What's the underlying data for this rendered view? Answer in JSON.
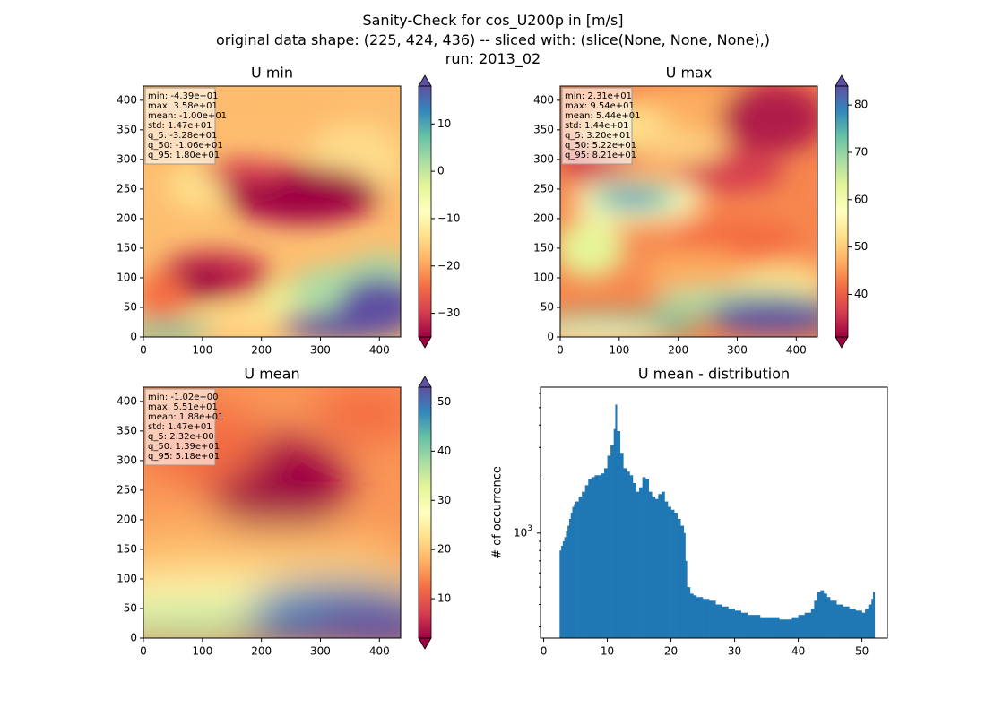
{
  "suptitle": {
    "line1": "Sanity-Check for cos_U200p in [m/s]",
    "line2": "original data shape: (225, 424, 436) -- sliced with: (slice(None, None, None),)",
    "line3": "run: 2013_02"
  },
  "chart_data": [
    {
      "type": "heatmap",
      "title": "U min",
      "xlim": [
        0,
        436
      ],
      "ylim": [
        0,
        424
      ],
      "xticks": [
        0,
        100,
        200,
        300,
        400
      ],
      "yticks": [
        0,
        50,
        100,
        150,
        200,
        250,
        300,
        350,
        400
      ],
      "colormap": "Spectral",
      "colorbar": {
        "range": [
          -35,
          18
        ],
        "ticks": [
          -30,
          -20,
          -10,
          0,
          10
        ],
        "extend": "both"
      },
      "stats": [
        "min: -4.39e+01",
        "max: 3.58e+01",
        "mean: -1.00e+01",
        "std: 1.47e+01",
        "q_5: -3.28e+01",
        "q_50: -1.06e+01",
        "q_95: 1.80e+01"
      ]
    },
    {
      "type": "heatmap",
      "title": "U max",
      "xlim": [
        0,
        436
      ],
      "ylim": [
        0,
        424
      ],
      "xticks": [
        0,
        100,
        200,
        300,
        400
      ],
      "yticks": [
        0,
        50,
        100,
        150,
        200,
        250,
        300,
        350,
        400
      ],
      "colormap": "Spectral",
      "colorbar": {
        "range": [
          31,
          84
        ],
        "ticks": [
          40,
          50,
          60,
          70,
          80
        ],
        "extend": "both"
      },
      "stats": [
        "min: 2.31e+01",
        "max: 9.54e+01",
        "mean: 5.44e+01",
        "std: 1.44e+01",
        "q_5: 3.20e+01",
        "q_50: 5.22e+01",
        "q_95: 8.21e+01"
      ]
    },
    {
      "type": "heatmap",
      "title": "U mean",
      "xlim": [
        0,
        436
      ],
      "ylim": [
        0,
        424
      ],
      "xticks": [
        0,
        100,
        200,
        300,
        400
      ],
      "yticks": [
        0,
        50,
        100,
        150,
        200,
        250,
        300,
        350,
        400
      ],
      "colormap": "Spectral",
      "colorbar": {
        "range": [
          2,
          53
        ],
        "ticks": [
          10,
          20,
          30,
          40,
          50
        ],
        "extend": "both"
      },
      "stats": [
        "min: -1.02e+00",
        "max: 5.51e+01",
        "mean: 1.88e+01",
        "std: 1.47e+01",
        "q_5: 2.32e+00",
        "q_50: 1.39e+01",
        "q_95: 5.18e+01"
      ]
    },
    {
      "type": "bar",
      "title": "U mean - distribution",
      "xlabel": "",
      "ylabel": "# of occurrence",
      "yscale": "log",
      "xlim": [
        -0.5,
        54
      ],
      "ylim": [
        260,
        6500
      ],
      "xticks": [
        0,
        10,
        20,
        30,
        40,
        50
      ],
      "ytick_label": "10^3",
      "bar_color": "#1f77b4",
      "bins": {
        "x": [
          2.5,
          2.75,
          3,
          3.25,
          3.5,
          3.75,
          4,
          4.25,
          4.5,
          4.75,
          5,
          5.5,
          6,
          6.5,
          7,
          7.5,
          8,
          8.5,
          9,
          9.5,
          10,
          10.5,
          11,
          11.25,
          11.5,
          12,
          12.5,
          13,
          13.5,
          14,
          14.5,
          15,
          15.5,
          16,
          16.5,
          17,
          17.5,
          18,
          18.5,
          19,
          19.5,
          20,
          20.5,
          21,
          21.5,
          22,
          22.25,
          22.5,
          23,
          23.5,
          24,
          25,
          26,
          27,
          28,
          29,
          30,
          31,
          32,
          33,
          34,
          35,
          36,
          37,
          38,
          39,
          40,
          41,
          42,
          42.5,
          43,
          43.5,
          44,
          44.5,
          45,
          46,
          47,
          48,
          49,
          50,
          50.5,
          51,
          51.5,
          51.75
        ],
        "counts": [
          800,
          850,
          900,
          950,
          1020,
          1100,
          1200,
          1300,
          1400,
          1450,
          1500,
          1600,
          1700,
          1850,
          2000,
          2050,
          2100,
          2100,
          2150,
          2300,
          2700,
          3100,
          3800,
          5200,
          3700,
          2800,
          2300,
          2200,
          2100,
          1900,
          1700,
          1800,
          2050,
          2000,
          1700,
          1600,
          1550,
          1650,
          1700,
          1500,
          1400,
          1350,
          1300,
          1200,
          1100,
          1000,
          700,
          500,
          460,
          450,
          440,
          430,
          420,
          400,
          390,
          380,
          370,
          360,
          350,
          350,
          340,
          340,
          340,
          330,
          330,
          340,
          350,
          360,
          380,
          420,
          470,
          480,
          460,
          440,
          420,
          400,
          390,
          380,
          370,
          360,
          380,
          400,
          430,
          470
        ]
      }
    }
  ]
}
